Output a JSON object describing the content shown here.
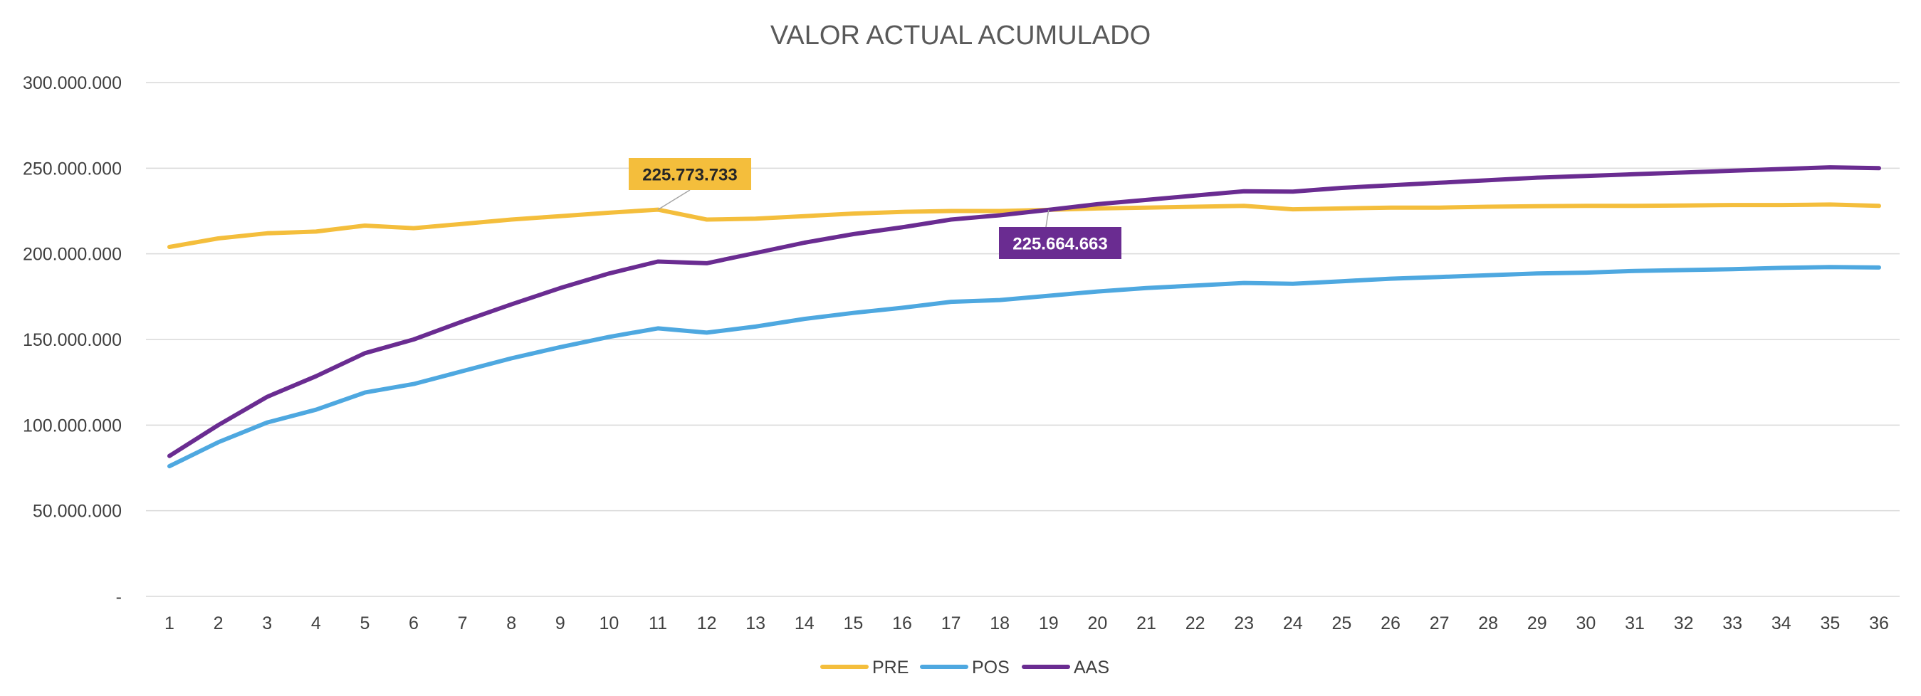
{
  "chart_data": {
    "type": "line",
    "title": "VALOR ACTUAL ACUMULADO",
    "xlabel": "",
    "ylabel": "",
    "categories": [
      "1",
      "2",
      "3",
      "4",
      "5",
      "6",
      "7",
      "8",
      "9",
      "10",
      "11",
      "12",
      "13",
      "14",
      "15",
      "16",
      "17",
      "18",
      "19",
      "20",
      "21",
      "22",
      "23",
      "24",
      "25",
      "26",
      "27",
      "28",
      "29",
      "30",
      "31",
      "32",
      "33",
      "34",
      "35",
      "36"
    ],
    "ylim": [
      0,
      300000000
    ],
    "yticks": [
      {
        "value": 0,
        "label": "-"
      },
      {
        "value": 50000000,
        "label": "50.000.000"
      },
      {
        "value": 100000000,
        "label": "100.000.000"
      },
      {
        "value": 150000000,
        "label": "150.000.000"
      },
      {
        "value": 200000000,
        "label": "200.000.000"
      },
      {
        "value": 250000000,
        "label": "250.000.000"
      },
      {
        "value": 300000000,
        "label": "300.000.000"
      }
    ],
    "grid": "horizontal",
    "legend_position": "bottom",
    "series": [
      {
        "name": "PRE",
        "color": "#F4BE3C",
        "values": [
          204000000,
          209000000,
          212000000,
          213000000,
          216500000,
          215000000,
          217500000,
          220000000,
          222000000,
          224000000,
          225773733,
          220000000,
          220500000,
          222000000,
          223500000,
          224500000,
          225000000,
          225000000,
          225664663,
          226500000,
          227000000,
          227500000,
          228000000,
          226000000,
          226500000,
          227000000,
          227000000,
          227500000,
          227800000,
          228000000,
          228000000,
          228200000,
          228500000,
          228500000,
          228800000,
          228000000
        ]
      },
      {
        "name": "POS",
        "color": "#4EA8E0",
        "values": [
          76000000,
          90000000,
          101500000,
          109000000,
          119000000,
          124000000,
          131500000,
          139000000,
          145500000,
          151500000,
          156500000,
          154000000,
          157500000,
          162000000,
          165500000,
          168500000,
          172000000,
          173000000,
          175500000,
          178000000,
          180000000,
          181500000,
          183000000,
          182500000,
          184000000,
          185500000,
          186500000,
          187500000,
          188500000,
          189000000,
          190000000,
          190500000,
          191000000,
          191800000,
          192300000,
          192000000
        ]
      },
      {
        "name": "AAS",
        "color": "#6A2C91",
        "values": [
          82000000,
          100000000,
          116500000,
          128500000,
          142000000,
          150000000,
          160500000,
          170500000,
          180000000,
          188500000,
          195500000,
          194500000,
          200500000,
          206500000,
          211500000,
          215500000,
          220000000,
          222500000,
          225664663,
          229000000,
          231500000,
          234000000,
          236500000,
          236300000,
          238500000,
          240000000,
          241500000,
          243000000,
          244500000,
          245500000,
          246500000,
          247500000,
          248500000,
          249500000,
          250500000,
          250000000
        ]
      }
    ],
    "annotations": [
      {
        "series": "PRE",
        "index": 10,
        "label": "225.773.733",
        "bg": "#F4BE3C",
        "fg": "#262626"
      },
      {
        "series": "AAS",
        "index": 18,
        "label": "225.664.663",
        "bg": "#6A2C91",
        "fg": "#FFFFFF"
      }
    ],
    "colors": {
      "grid": "#D9D9D9",
      "axis_text": "#404040",
      "title": "#595959"
    }
  }
}
